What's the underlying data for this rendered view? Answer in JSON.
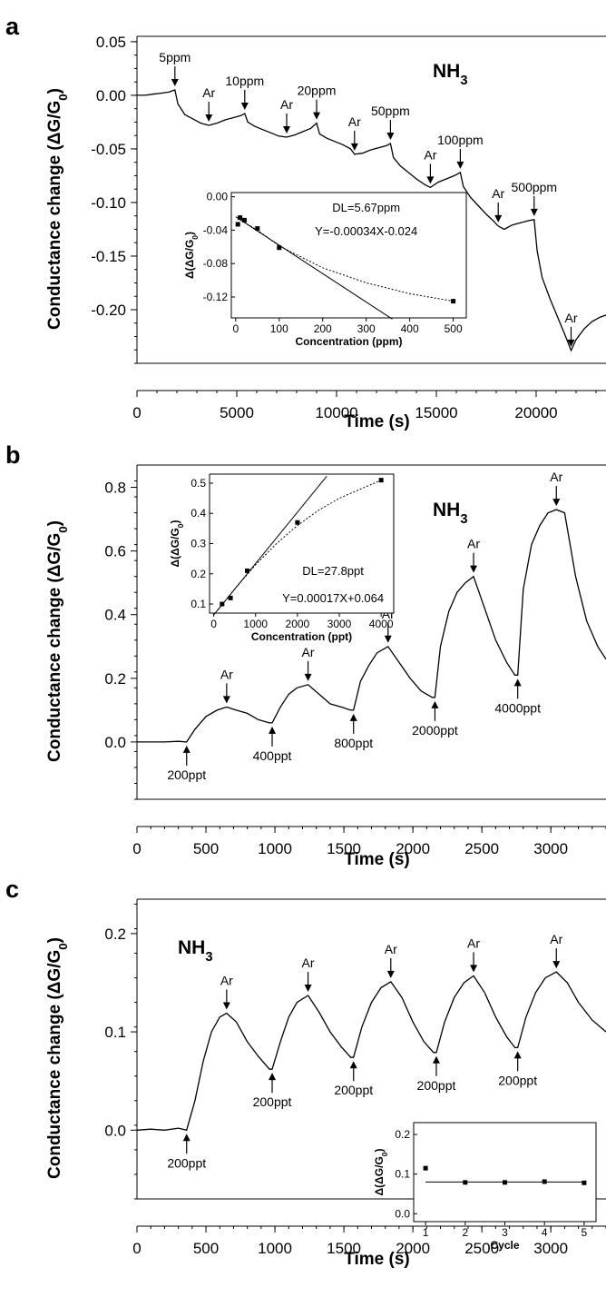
{
  "chart_data": [
    {
      "panel": "a",
      "type": "line",
      "gas_label": "NH",
      "gas_sub": "3",
      "xlabel": "Time (s)",
      "ylabel": "Conductance change (ΔG/G",
      "ylabel_sub": "0",
      "ylabel_end": ")",
      "xlim": [
        0,
        23500
      ],
      "ylim": [
        -0.25,
        0.055
      ],
      "xticks": [
        "0",
        "5000",
        "10000",
        "15000",
        "20000"
      ],
      "xtick_values": [
        0,
        5000,
        10000,
        15000,
        20000
      ],
      "yticks": [
        "0.05",
        "0.00",
        "-0.05",
        "-0.10",
        "-0.15",
        "-0.20"
      ],
      "ytick_values": [
        0.05,
        0.0,
        -0.05,
        -0.1,
        -0.15,
        -0.2
      ],
      "series": [
        {
          "x": [
            0,
            400,
            800,
            1200,
            1600,
            1900,
            2050,
            2400,
            2800,
            3200,
            3600,
            4000,
            4400,
            4800,
            5200,
            5400,
            5550,
            5900,
            6300,
            6700,
            7100,
            7500,
            7900,
            8300,
            8700,
            9000,
            9150,
            9500,
            9900,
            10300,
            10700,
            10900,
            11300,
            11700,
            12100,
            12500,
            12700,
            12850,
            13200,
            13600,
            14000,
            14400,
            14700,
            15100,
            15500,
            15900,
            16200,
            16350,
            16700,
            17100,
            17500,
            17900,
            18100,
            18400,
            18800,
            19200,
            19600,
            19900,
            20050,
            20300,
            20700,
            21100,
            21500,
            21750,
            22000,
            22400,
            22800,
            23200,
            23500
          ],
          "y": [
            0.0,
            0.0,
            0.001,
            0.002,
            0.003,
            0.005,
            -0.008,
            -0.018,
            -0.022,
            -0.026,
            -0.028,
            -0.026,
            -0.023,
            -0.021,
            -0.019,
            -0.017,
            -0.025,
            -0.029,
            -0.032,
            -0.035,
            -0.038,
            -0.039,
            -0.037,
            -0.034,
            -0.031,
            -0.026,
            -0.036,
            -0.04,
            -0.043,
            -0.046,
            -0.05,
            -0.055,
            -0.054,
            -0.051,
            -0.049,
            -0.047,
            -0.045,
            -0.058,
            -0.066,
            -0.072,
            -0.078,
            -0.083,
            -0.086,
            -0.081,
            -0.078,
            -0.075,
            -0.072,
            -0.085,
            -0.095,
            -0.103,
            -0.111,
            -0.118,
            -0.122,
            -0.125,
            -0.121,
            -0.119,
            -0.117,
            -0.116,
            -0.145,
            -0.17,
            -0.19,
            -0.208,
            -0.226,
            -0.238,
            -0.228,
            -0.218,
            -0.211,
            -0.207,
            -0.205
          ]
        }
      ],
      "annotations": [
        {
          "text": "5ppm",
          "x": 1900,
          "y": 0.005,
          "pos": "above"
        },
        {
          "text": "Ar",
          "x": 3600,
          "y": -0.028,
          "pos": "above"
        },
        {
          "text": "10ppm",
          "x": 5400,
          "y": -0.017,
          "pos": "above"
        },
        {
          "text": "Ar",
          "x": 7500,
          "y": -0.039,
          "pos": "above"
        },
        {
          "text": "20ppm",
          "x": 9000,
          "y": -0.026,
          "pos": "above"
        },
        {
          "text": "Ar",
          "x": 10900,
          "y": -0.055,
          "pos": "above"
        },
        {
          "text": "50ppm",
          "x": 12700,
          "y": -0.045,
          "pos": "above"
        },
        {
          "text": "Ar",
          "x": 14700,
          "y": -0.086,
          "pos": "above"
        },
        {
          "text": "100ppm",
          "x": 16200,
          "y": -0.072,
          "pos": "above"
        },
        {
          "text": "Ar",
          "x": 18100,
          "y": -0.122,
          "pos": "above"
        },
        {
          "text": "500ppm",
          "x": 19900,
          "y": -0.116,
          "pos": "above"
        },
        {
          "text": "Ar",
          "x": 21750,
          "y": -0.238,
          "pos": "above"
        }
      ],
      "inset": {
        "type": "scatter",
        "xlabel": "Concentration (ppm)",
        "ylabel": "Δ(ΔG/G",
        "ylabel_sub": "0",
        "ylabel_end": ")",
        "xlim": [
          -10,
          530
        ],
        "ylim": [
          -0.145,
          0.005
        ],
        "xticks": [
          "0",
          "100",
          "200",
          "300",
          "400",
          "500"
        ],
        "xtick_values": [
          0,
          100,
          200,
          300,
          400,
          500
        ],
        "yticks": [
          "0.00",
          "-0.04",
          "-0.08",
          "-0.12"
        ],
        "ytick_values": [
          0.0,
          -0.04,
          -0.08,
          -0.12
        ],
        "points": {
          "x": [
            5,
            10,
            20,
            50,
            100,
            500
          ],
          "y": [
            -0.033,
            -0.025,
            -0.028,
            -0.038,
            -0.061,
            -0.125
          ]
        },
        "fit_slope": -0.00034,
        "fit_intercept": -0.024,
        "fit_xmax": 360,
        "curve_x": [
          5,
          50,
          100,
          200,
          300,
          400,
          500
        ],
        "curve_y": [
          -0.026,
          -0.04,
          -0.059,
          -0.085,
          -0.103,
          -0.116,
          -0.125
        ],
        "text1": "DL=5.67ppm",
        "text2": "Y=-0.00034X-0.024"
      }
    },
    {
      "panel": "b",
      "type": "line",
      "gas_label": "NH",
      "gas_sub": "3",
      "xlabel": "Time (s)",
      "ylabel": "Conductance change (ΔG/G",
      "ylabel_sub": "0",
      "ylabel_end": ")",
      "xlim": [
        0,
        3400
      ],
      "ylim": [
        -0.18,
        0.87
      ],
      "xticks": [
        "0",
        "500",
        "1000",
        "1500",
        "2000",
        "2500",
        "3000"
      ],
      "xtick_values": [
        0,
        500,
        1000,
        1500,
        2000,
        2500,
        3000
      ],
      "yticks": [
        "0.8",
        "0.6",
        "0.4",
        "0.2",
        "0.0"
      ],
      "ytick_values": [
        0.8,
        0.6,
        0.4,
        0.2,
        0.0
      ],
      "series": [
        {
          "x": [
            0,
            100,
            200,
            300,
            360,
            420,
            500,
            580,
            650,
            720,
            800,
            880,
            960,
            980,
            1040,
            1100,
            1160,
            1240,
            1320,
            1400,
            1480,
            1550,
            1570,
            1620,
            1680,
            1740,
            1820,
            1900,
            1980,
            2060,
            2140,
            2160,
            2200,
            2260,
            2320,
            2380,
            2440,
            2520,
            2600,
            2680,
            2740,
            2760,
            2800,
            2860,
            2920,
            2980,
            3040,
            3100,
            3180,
            3260,
            3340,
            3400
          ],
          "y": [
            0.0,
            0.0,
            0.0,
            0.002,
            0.0,
            0.04,
            0.08,
            0.1,
            0.11,
            0.1,
            0.09,
            0.07,
            0.06,
            0.06,
            0.11,
            0.15,
            0.17,
            0.18,
            0.15,
            0.12,
            0.11,
            0.1,
            0.1,
            0.19,
            0.24,
            0.28,
            0.3,
            0.25,
            0.2,
            0.16,
            0.14,
            0.14,
            0.3,
            0.41,
            0.47,
            0.5,
            0.52,
            0.42,
            0.32,
            0.25,
            0.21,
            0.21,
            0.48,
            0.62,
            0.68,
            0.72,
            0.73,
            0.72,
            0.52,
            0.38,
            0.3,
            0.26
          ]
        }
      ],
      "annotations": [
        {
          "text": "Ar",
          "x": 650,
          "y": 0.11,
          "pos": "above"
        },
        {
          "text": "Ar",
          "x": 1240,
          "y": 0.18,
          "pos": "above"
        },
        {
          "text": "Ar",
          "x": 1820,
          "y": 0.3,
          "pos": "above"
        },
        {
          "text": "Ar",
          "x": 2440,
          "y": 0.52,
          "pos": "above"
        },
        {
          "text": "Ar",
          "x": 3040,
          "y": 0.73,
          "pos": "above"
        },
        {
          "text": "200ppt",
          "x": 360,
          "y": 0.0,
          "pos": "below"
        },
        {
          "text": "400ppt",
          "x": 980,
          "y": 0.06,
          "pos": "below"
        },
        {
          "text": "800ppt",
          "x": 1570,
          "y": 0.1,
          "pos": "below"
        },
        {
          "text": "2000ppt",
          "x": 2160,
          "y": 0.14,
          "pos": "below"
        },
        {
          "text": "4000ppt",
          "x": 2760,
          "y": 0.21,
          "pos": "below"
        }
      ],
      "inset": {
        "type": "scatter",
        "xlabel": "Concentration (ppt)",
        "ylabel": "Δ(ΔG/G",
        "ylabel_sub": "0",
        "ylabel_end": ")",
        "xlim": [
          -100,
          4300
        ],
        "ylim": [
          0.07,
          0.53
        ],
        "xticks": [
          "0",
          "1000",
          "2000",
          "3000",
          "4000"
        ],
        "xtick_values": [
          0,
          1000,
          2000,
          3000,
          4000
        ],
        "yticks": [
          "0.5",
          "0.4",
          "0.3",
          "0.2",
          "0.1"
        ],
        "ytick_values": [
          0.5,
          0.4,
          0.3,
          0.2,
          0.1
        ],
        "points": {
          "x": [
            200,
            400,
            800,
            2000,
            4000
          ],
          "y": [
            0.1,
            0.12,
            0.21,
            0.37,
            0.51
          ]
        },
        "fit_slope": 0.00017,
        "fit_intercept": 0.064,
        "fit_xmax": 2700,
        "curve_x": [
          100,
          500,
          1000,
          1500,
          2000,
          2500,
          3000,
          3500,
          4000
        ],
        "curve_y": [
          0.08,
          0.15,
          0.23,
          0.3,
          0.36,
          0.41,
          0.45,
          0.48,
          0.51
        ],
        "text1": "DL=27.8ppt",
        "text2": "Y=0.00017X+0.064"
      }
    },
    {
      "panel": "c",
      "type": "line",
      "gas_label": "NH",
      "gas_sub": "3",
      "xlabel": "Time (s)",
      "ylabel": "Conductance change (ΔG/G",
      "ylabel_sub": "0",
      "ylabel_end": ")",
      "xlim": [
        0,
        3400
      ],
      "ylim": [
        -0.07,
        0.235
      ],
      "xticks": [
        "0",
        "500",
        "1000",
        "1500",
        "2000",
        "2500",
        "3000"
      ],
      "xtick_values": [
        0,
        500,
        1000,
        1500,
        2000,
        2500,
        3000
      ],
      "yticks": [
        "0.2",
        "0.1",
        "0.0"
      ],
      "ytick_values": [
        0.2,
        0.1,
        0.0
      ],
      "series": [
        {
          "x": [
            0,
            100,
            200,
            300,
            360,
            420,
            480,
            540,
            600,
            650,
            720,
            800,
            880,
            960,
            980,
            1040,
            1100,
            1160,
            1240,
            1320,
            1400,
            1480,
            1550,
            1570,
            1630,
            1700,
            1770,
            1840,
            1920,
            2000,
            2080,
            2150,
            2170,
            2230,
            2300,
            2370,
            2440,
            2520,
            2600,
            2680,
            2740,
            2760,
            2820,
            2890,
            2960,
            3040,
            3120,
            3200,
            3300,
            3400
          ],
          "y": [
            0.0,
            0.001,
            0.0,
            0.002,
            0.0,
            0.03,
            0.07,
            0.1,
            0.115,
            0.119,
            0.11,
            0.09,
            0.075,
            0.062,
            0.062,
            0.09,
            0.115,
            0.13,
            0.137,
            0.12,
            0.1,
            0.085,
            0.074,
            0.074,
            0.105,
            0.13,
            0.145,
            0.151,
            0.135,
            0.11,
            0.09,
            0.079,
            0.079,
            0.11,
            0.135,
            0.15,
            0.157,
            0.14,
            0.115,
            0.095,
            0.084,
            0.084,
            0.115,
            0.14,
            0.155,
            0.161,
            0.15,
            0.13,
            0.112,
            0.1
          ]
        }
      ],
      "annotations": [
        {
          "text": "Ar",
          "x": 650,
          "y": 0.119,
          "pos": "above"
        },
        {
          "text": "Ar",
          "x": 1240,
          "y": 0.137,
          "pos": "above"
        },
        {
          "text": "Ar",
          "x": 1840,
          "y": 0.151,
          "pos": "above"
        },
        {
          "text": "Ar",
          "x": 2440,
          "y": 0.157,
          "pos": "above"
        },
        {
          "text": "Ar",
          "x": 3040,
          "y": 0.161,
          "pos": "above"
        },
        {
          "text": "200ppt",
          "x": 360,
          "y": 0.0,
          "pos": "below"
        },
        {
          "text": "200ppt",
          "x": 980,
          "y": 0.062,
          "pos": "below"
        },
        {
          "text": "200ppt",
          "x": 1570,
          "y": 0.074,
          "pos": "below"
        },
        {
          "text": "200ppt",
          "x": 2170,
          "y": 0.079,
          "pos": "below"
        },
        {
          "text": "200ppt",
          "x": 2760,
          "y": 0.084,
          "pos": "below"
        }
      ],
      "inset": {
        "type": "scatter",
        "xlabel": "Cycle",
        "ylabel": "Δ(ΔG/G",
        "ylabel_sub": "0",
        "ylabel_end": ")",
        "xlim": [
          0.7,
          5.3
        ],
        "ylim": [
          -0.02,
          0.23
        ],
        "xticks": [
          "1",
          "2",
          "3",
          "4",
          "5"
        ],
        "xtick_values": [
          1,
          2,
          3,
          4,
          5
        ],
        "yticks": [
          "0.2",
          "0.1",
          "0.0"
        ],
        "ytick_values": [
          0.2,
          0.1,
          0.0
        ],
        "points": {
          "x": [
            1,
            2,
            3,
            4,
            5
          ],
          "y": [
            0.115,
            0.079,
            0.079,
            0.081,
            0.078
          ]
        },
        "hline": 0.08
      }
    }
  ]
}
